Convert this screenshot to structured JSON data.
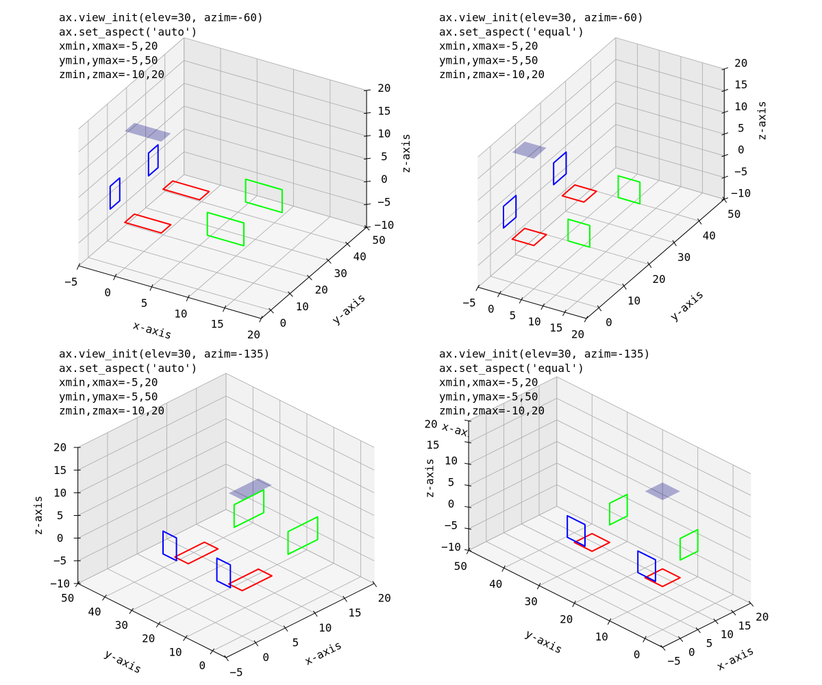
{
  "chart_data": {
    "type": "3d-line",
    "colors": {
      "red": "#ff0000",
      "blue": "#0000ff",
      "green": "#00ff00",
      "fill": "#000080"
    },
    "shapes": [
      {
        "kind": "line",
        "color": "#ff0000",
        "points": [
          [
            0,
            0,
            0
          ],
          [
            5,
            0,
            0
          ],
          [
            5,
            5,
            0
          ],
          [
            0,
            5,
            0
          ]
        ]
      },
      {
        "kind": "line",
        "color": "#ff0000",
        "points": [
          [
            0,
            20,
            0
          ],
          [
            5,
            20,
            0
          ],
          [
            5,
            25,
            0
          ],
          [
            0,
            25,
            0
          ]
        ]
      },
      {
        "kind": "line",
        "color": "#0000ff",
        "points": [
          [
            -2,
            0,
            2
          ],
          [
            -2,
            5,
            2
          ],
          [
            -2,
            5,
            7
          ],
          [
            -2,
            0,
            7
          ]
        ]
      },
      {
        "kind": "line",
        "color": "#0000ff",
        "points": [
          [
            -2,
            20,
            2
          ],
          [
            -2,
            25,
            2
          ],
          [
            -2,
            25,
            7
          ],
          [
            -2,
            20,
            7
          ]
        ]
      },
      {
        "kind": "line",
        "color": "#00ff00",
        "points": [
          [
            10,
            5,
            0
          ],
          [
            15,
            5,
            0
          ],
          [
            15,
            5,
            5
          ],
          [
            10,
            5,
            5
          ]
        ]
      },
      {
        "kind": "line",
        "color": "#00ff00",
        "points": [
          [
            10,
            25,
            0
          ],
          [
            15,
            25,
            0
          ],
          [
            15,
            25,
            5
          ],
          [
            10,
            25,
            5
          ]
        ]
      },
      {
        "kind": "fill",
        "color": "#000080",
        "alpha": 0.3,
        "points": [
          [
            0,
            0,
            20
          ],
          [
            5,
            0,
            20
          ],
          [
            5,
            5,
            20
          ],
          [
            0,
            5,
            20
          ]
        ]
      }
    ],
    "panels": [
      {
        "title_lines": [
          "ax.view_init(elev=30, azim=-60)",
          "ax.set_aspect('auto')",
          "xmin,xmax=-5,20",
          "ymin,ymax=-5,50",
          "zmin,zmax=-10,20"
        ],
        "elev": 30,
        "azim": -60,
        "aspect": "auto",
        "xlim": [
          -5,
          20
        ],
        "ylim": [
          -5,
          50
        ],
        "zlim": [
          -10,
          20
        ],
        "xlabel": "x-axis",
        "ylabel": "y-axis",
        "zlabel": "z-axis",
        "grid": true,
        "xticks": [
          -5,
          0,
          5,
          10,
          15,
          20
        ],
        "xtick_labels": [
          "−5",
          "0",
          "5",
          "10",
          "15",
          "20"
        ],
        "yticks": [
          0,
          10,
          20,
          30,
          40,
          50
        ],
        "ytick_labels": [
          "0",
          "10",
          "20",
          "30",
          "40",
          "50"
        ],
        "zticks": [
          -10,
          -5,
          0,
          5,
          10,
          15,
          20
        ],
        "ztick_labels": [
          "−10",
          "−5",
          "0",
          "5",
          "10",
          "15",
          "20"
        ]
      },
      {
        "title_lines": [
          "ax.view_init(elev=30, azim=-60)",
          "ax.set_aspect('equal')",
          "xmin,xmax=-5,20",
          "ymin,ymax=-5,50",
          "zmin,zmax=-10,20"
        ],
        "elev": 30,
        "azim": -60,
        "aspect": "equal",
        "xlim": [
          -5,
          20
        ],
        "ylim": [
          -5,
          50
        ],
        "zlim": [
          -10,
          20
        ],
        "xlabel": "x-axis",
        "ylabel": "y-axis",
        "zlabel": "z-axis",
        "grid": true,
        "xticks": [
          -5,
          0,
          5,
          10,
          15,
          20
        ],
        "xtick_labels": [
          "−5",
          "0",
          "5",
          "10",
          "15",
          "20"
        ],
        "yticks": [
          0,
          10,
          20,
          30,
          40,
          50
        ],
        "ytick_labels": [
          "0",
          "10",
          "20",
          "30",
          "40",
          "50"
        ],
        "zticks": [
          -10,
          -5,
          0,
          5,
          10,
          15,
          20
        ],
        "ztick_labels": [
          "−10",
          "−5",
          "0",
          "5",
          "10",
          "15",
          "20"
        ]
      },
      {
        "title_lines": [
          "ax.view_init(elev=30, azim=-135)",
          "ax.set_aspect('auto')",
          "xmin,xmax=-5,20",
          "ymin,ymax=-5,50",
          "zmin,zmax=-10,20"
        ],
        "elev": 30,
        "azim": -135,
        "aspect": "auto",
        "xlim": [
          -5,
          20
        ],
        "ylim": [
          -5,
          50
        ],
        "zlim": [
          -10,
          20
        ],
        "xlabel": "x-axis",
        "ylabel": "y-axis",
        "zlabel": "z-axis",
        "grid": true,
        "xticks": [
          -5,
          0,
          5,
          10,
          15,
          20
        ],
        "xtick_labels": [
          "−5",
          "0",
          "5",
          "10",
          "15",
          "20"
        ],
        "yticks": [
          0,
          10,
          20,
          30,
          40,
          50
        ],
        "ytick_labels": [
          "0",
          "10",
          "20",
          "30",
          "40",
          "50"
        ],
        "zticks": [
          -10,
          -5,
          0,
          5,
          10,
          15,
          20
        ],
        "ztick_labels": [
          "−10",
          "−5",
          "0",
          "5",
          "10",
          "15",
          "20"
        ]
      },
      {
        "title_lines": [
          "ax.view_init(elev=30, azim=-135)",
          "ax.set_aspect('equal')",
          "xmin,xmax=-5,20",
          "ymin,ymax=-5,50",
          "zmin,zmax=-10,20"
        ],
        "elev": 30,
        "azim": -135,
        "aspect": "equal",
        "xlim": [
          -5,
          20
        ],
        "ylim": [
          -5,
          50
        ],
        "zlim": [
          -10,
          20
        ],
        "xlabel": "x-axis",
        "ylabel": "y-axis",
        "zlabel": "z-axis",
        "grid": true,
        "xticks": [
          -5,
          0,
          5,
          10,
          15,
          20
        ],
        "xtick_labels": [
          "−5",
          "0",
          "5",
          "10",
          "15",
          "20"
        ],
        "yticks": [
          0,
          10,
          20,
          30,
          40,
          50
        ],
        "ytick_labels": [
          "0",
          "10",
          "20",
          "30",
          "40",
          "50"
        ],
        "zticks": [
          -10,
          -5,
          0,
          5,
          10,
          15,
          20
        ],
        "ztick_labels": [
          "−10",
          "−5",
          "0",
          "5",
          "10",
          "15",
          "20"
        ]
      }
    ]
  }
}
